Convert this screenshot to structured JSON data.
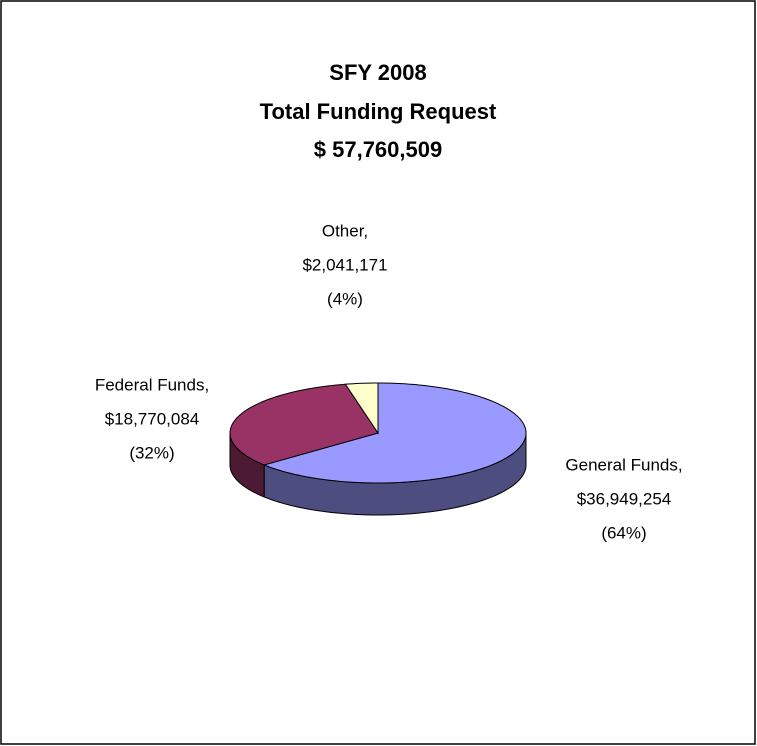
{
  "chart_data": {
    "type": "pie3d",
    "title": [
      "SFY 2008",
      "Total Funding Request",
      "$ 57,760,509"
    ],
    "categories": [
      "General Funds,",
      "Federal Funds,",
      "Other,"
    ],
    "values": [
      36949254,
      18770084,
      2041171
    ],
    "value_labels": [
      "$36,949,254",
      "$18,770,084",
      "$2,041,171"
    ],
    "percents": [
      64,
      32,
      4
    ],
    "percent_labels": [
      "(64%)",
      "(32%)",
      "(4%)"
    ],
    "colors": [
      "#9999ff",
      "#993366",
      "#ffffcc"
    ],
    "side_colors": [
      "#4d4d80",
      "#4d1a33",
      "#80806a"
    ]
  }
}
